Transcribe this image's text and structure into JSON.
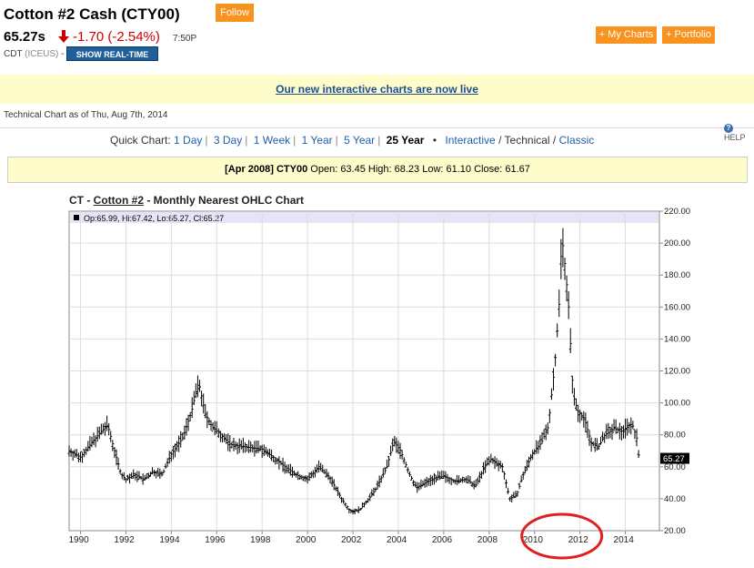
{
  "header": {
    "title": "Cotton #2 Cash (CTY00)",
    "follow_label": "Follow",
    "price": "65.27s",
    "change": "-1.70 (-2.54%)",
    "time": "7:50P",
    "exchange_prefix": "CDT",
    "exchange": "(ICEUS)",
    "exchange_suffix": " -",
    "realtime_label": "SHOW REAL-TIME",
    "mycharts_label": "+ My Charts",
    "portfolio_label": "+ Portfolio",
    "down_color": "#cc0000",
    "accent_color": "#f7931e"
  },
  "banner": {
    "text": "Our new interactive charts are now live"
  },
  "asof": "Technical Chart as of Thu, Aug 7th, 2014",
  "help_label": "HELP",
  "quick_chart": {
    "label": "Quick Chart:",
    "options": [
      "1 Day",
      "3 Day",
      "1 Week",
      "1 Year",
      "5 Year",
      "25 Year"
    ],
    "selected": "25 Year",
    "interactive": "Interactive",
    "technical": "Technical",
    "classic": "Classic"
  },
  "ohlc_bar": {
    "period": "[Apr 2008]",
    "symbol": "CTY00",
    "text": "Open: 63.45 High: 68.23 Low: 61.10 Close: 61.67"
  },
  "chart_data": {
    "type": "ohlc",
    "title_prefix": "CT - ",
    "title_name": "Cotton #2",
    "title_suffix": " - Monthly Nearest OHLC Chart",
    "legend": "Op:65.99, Hi:67.42, Lo:65.27, Cl:65.27",
    "last_value": "65.27",
    "x_ticks": [
      "1990",
      "1992",
      "1994",
      "1996",
      "1998",
      "2000",
      "2002",
      "2004",
      "2006",
      "2008",
      "2010",
      "2012",
      "2014"
    ],
    "y_ticks": [
      "20.00",
      "40.00",
      "60.00",
      "80.00",
      "100.00",
      "120.00",
      "140.00",
      "160.00",
      "180.00",
      "200.00",
      "220.00"
    ],
    "ylim": [
      20,
      220
    ],
    "xlim": [
      1989.5,
      2015.5
    ],
    "grid": true,
    "series_color": "#000000",
    "highlight_color": "#e0201e",
    "keypoints": [
      [
        1989.5,
        70
      ],
      [
        1990.0,
        66
      ],
      [
        1990.5,
        75
      ],
      [
        1990.9,
        82
      ],
      [
        1991.2,
        86
      ],
      [
        1991.5,
        70
      ],
      [
        1991.8,
        55
      ],
      [
        1992.0,
        52
      ],
      [
        1992.4,
        55
      ],
      [
        1992.8,
        52
      ],
      [
        1993.2,
        57
      ],
      [
        1993.6,
        55
      ],
      [
        1994.0,
        68
      ],
      [
        1994.5,
        78
      ],
      [
        1994.9,
        95
      ],
      [
        1995.1,
        108
      ],
      [
        1995.25,
        110
      ],
      [
        1995.5,
        93
      ],
      [
        1995.8,
        85
      ],
      [
        1996.2,
        80
      ],
      [
        1996.6,
        74
      ],
      [
        1997.0,
        73
      ],
      [
        1997.5,
        72
      ],
      [
        1998.0,
        71
      ],
      [
        1998.5,
        66
      ],
      [
        1999.0,
        60
      ],
      [
        1999.5,
        55
      ],
      [
        2000.0,
        52
      ],
      [
        2000.5,
        60
      ],
      [
        2001.0,
        53
      ],
      [
        2001.5,
        40
      ],
      [
        2001.9,
        32
      ],
      [
        2002.3,
        33
      ],
      [
        2002.7,
        40
      ],
      [
        2003.0,
        46
      ],
      [
        2003.5,
        60
      ],
      [
        2003.8,
        76
      ],
      [
        2004.1,
        70
      ],
      [
        2004.5,
        55
      ],
      [
        2004.8,
        47
      ],
      [
        2005.2,
        50
      ],
      [
        2005.6,
        53
      ],
      [
        2006.0,
        54
      ],
      [
        2006.5,
        51
      ],
      [
        2007.0,
        52
      ],
      [
        2007.4,
        48
      ],
      [
        2007.8,
        60
      ],
      [
        2008.1,
        65
      ],
      [
        2008.3,
        62
      ],
      [
        2008.6,
        60
      ],
      [
        2008.9,
        40
      ],
      [
        2009.2,
        42
      ],
      [
        2009.5,
        55
      ],
      [
        2009.9,
        68
      ],
      [
        2010.3,
        75
      ],
      [
        2010.6,
        85
      ],
      [
        2010.9,
        125
      ],
      [
        2011.1,
        165
      ],
      [
        2011.2,
        205
      ],
      [
        2011.35,
        185
      ],
      [
        2011.5,
        160
      ],
      [
        2011.7,
        105
      ],
      [
        2011.9,
        95
      ],
      [
        2012.2,
        90
      ],
      [
        2012.5,
        75
      ],
      [
        2012.8,
        72
      ],
      [
        2013.1,
        80
      ],
      [
        2013.5,
        84
      ],
      [
        2013.8,
        82
      ],
      [
        2014.1,
        85
      ],
      [
        2014.3,
        87
      ],
      [
        2014.5,
        78
      ],
      [
        2014.6,
        65.27
      ]
    ]
  }
}
